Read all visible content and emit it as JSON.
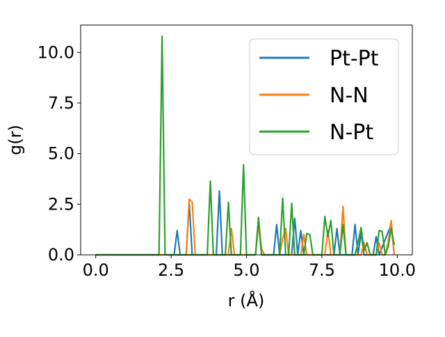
{
  "chart_data": {
    "type": "line",
    "title": "",
    "xlabel": "r (Å)",
    "ylabel": "g(r)",
    "xlim": [
      -0.5,
      10.5
    ],
    "ylim": [
      0,
      11.35
    ],
    "xticks": [
      "0.0",
      "2.5",
      "5.0",
      "7.5",
      "10.0"
    ],
    "yticks": [
      "0.0",
      "2.5",
      "5.0",
      "7.5",
      "10.0"
    ],
    "legend_position": "top-right",
    "grid": false,
    "series": [
      {
        "name": "Pt-Pt",
        "color": "#1f77b4",
        "points": [
          [
            0.0,
            0
          ],
          [
            2.5,
            0
          ],
          [
            2.6,
            0
          ],
          [
            2.7,
            1.2
          ],
          [
            2.8,
            0
          ],
          [
            3.0,
            0
          ],
          [
            3.1,
            2.6
          ],
          [
            3.2,
            0
          ],
          [
            4.0,
            0
          ],
          [
            4.1,
            3.15
          ],
          [
            4.2,
            0
          ],
          [
            5.3,
            0
          ],
          [
            5.4,
            1.7
          ],
          [
            5.5,
            0
          ],
          [
            5.9,
            0
          ],
          [
            6.0,
            1.5
          ],
          [
            6.1,
            0
          ],
          [
            6.5,
            0
          ],
          [
            6.6,
            1.8
          ],
          [
            6.7,
            0
          ],
          [
            6.8,
            1.2
          ],
          [
            6.9,
            0
          ],
          [
            7.9,
            0
          ],
          [
            8.0,
            1.3
          ],
          [
            8.1,
            0
          ],
          [
            8.5,
            0
          ],
          [
            8.6,
            1.5
          ],
          [
            8.7,
            0
          ],
          [
            8.8,
            1.1
          ],
          [
            8.9,
            0
          ],
          [
            9.2,
            0
          ],
          [
            9.3,
            0.9
          ],
          [
            9.4,
            0
          ],
          [
            9.8,
            1.5
          ],
          [
            9.9,
            0
          ]
        ]
      },
      {
        "name": "N-N",
        "color": "#ff7f0e",
        "points": [
          [
            0.0,
            0
          ],
          [
            2.9,
            0
          ],
          [
            3.0,
            0
          ],
          [
            3.1,
            2.75
          ],
          [
            3.2,
            2.6
          ],
          [
            3.3,
            0
          ],
          [
            4.4,
            0
          ],
          [
            4.5,
            1.3
          ],
          [
            4.6,
            0
          ],
          [
            5.3,
            0
          ],
          [
            5.4,
            1.5
          ],
          [
            5.5,
            0.3
          ],
          [
            5.6,
            0
          ],
          [
            6.1,
            0
          ],
          [
            6.2,
            0.8
          ],
          [
            6.3,
            1.3
          ],
          [
            6.4,
            0
          ],
          [
            6.8,
            0
          ],
          [
            6.9,
            1.0
          ],
          [
            7.0,
            0
          ],
          [
            7.6,
            0
          ],
          [
            7.7,
            1.2
          ],
          [
            7.8,
            0
          ],
          [
            8.1,
            0
          ],
          [
            8.2,
            2.4
          ],
          [
            8.3,
            0
          ],
          [
            8.8,
            0
          ],
          [
            8.9,
            0.6
          ],
          [
            9.0,
            0
          ],
          [
            9.3,
            0
          ],
          [
            9.4,
            0.6
          ],
          [
            9.5,
            0
          ],
          [
            9.6,
            0
          ],
          [
            9.7,
            0.6
          ],
          [
            9.8,
            1.7
          ],
          [
            9.9,
            0
          ]
        ]
      },
      {
        "name": "N-Pt",
        "color": "#2ca02c",
        "points": [
          [
            0.0,
            0
          ],
          [
            2.1,
            0
          ],
          [
            2.2,
            10.8
          ],
          [
            2.3,
            0
          ],
          [
            3.7,
            0
          ],
          [
            3.8,
            3.65
          ],
          [
            3.9,
            0
          ],
          [
            4.3,
            0
          ],
          [
            4.4,
            2.6
          ],
          [
            4.5,
            0
          ],
          [
            4.8,
            0
          ],
          [
            4.9,
            4.45
          ],
          [
            5.0,
            0
          ],
          [
            5.3,
            0
          ],
          [
            5.4,
            1.85
          ],
          [
            5.5,
            0
          ],
          [
            6.1,
            0
          ],
          [
            6.2,
            2.8
          ],
          [
            6.3,
            0
          ],
          [
            6.4,
            0
          ],
          [
            6.5,
            2.55
          ],
          [
            6.6,
            0
          ],
          [
            6.9,
            0
          ],
          [
            7.0,
            1.05
          ],
          [
            7.1,
            1.0
          ],
          [
            7.2,
            0
          ],
          [
            7.5,
            0
          ],
          [
            7.6,
            1.9
          ],
          [
            7.7,
            0.9
          ],
          [
            7.8,
            1.7
          ],
          [
            7.9,
            0
          ],
          [
            8.1,
            0
          ],
          [
            8.2,
            1.5
          ],
          [
            8.3,
            0
          ],
          [
            8.6,
            0
          ],
          [
            8.7,
            0.6
          ],
          [
            8.8,
            1.35
          ],
          [
            8.9,
            0.2
          ],
          [
            9.0,
            0.6
          ],
          [
            9.1,
            0
          ],
          [
            9.3,
            0
          ],
          [
            9.4,
            1.2
          ],
          [
            9.5,
            1.15
          ],
          [
            9.6,
            0
          ],
          [
            9.7,
            0.4
          ],
          [
            9.8,
            1.3
          ],
          [
            9.9,
            0.5
          ]
        ]
      }
    ]
  }
}
